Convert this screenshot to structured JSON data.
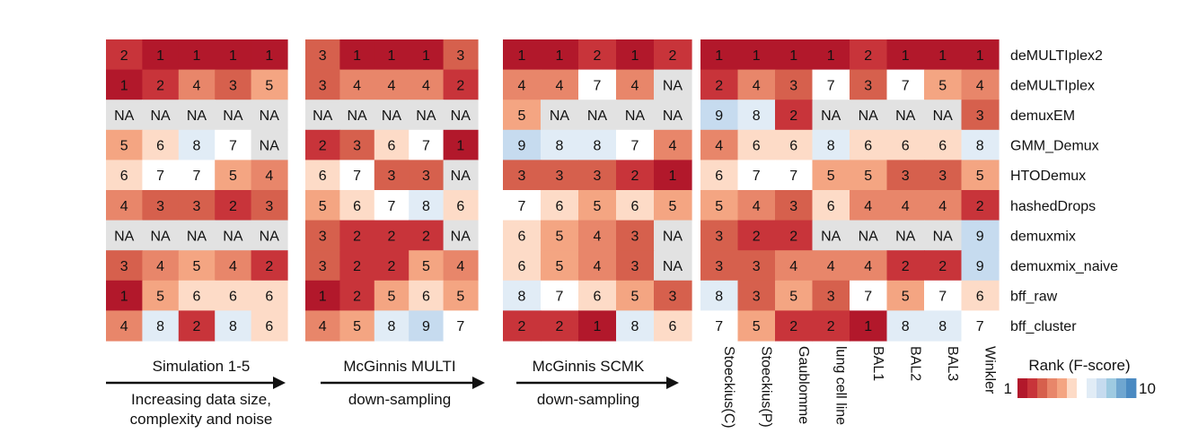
{
  "chart_data": {
    "type": "heatmap",
    "legend": {
      "title": "Rank (F-score)",
      "min_label": "1",
      "max_label": "10",
      "colors": [
        "#b2182b",
        "#c8343a",
        "#d6604d",
        "#e8866a",
        "#f4a582",
        "#fddbc7",
        "#ffffff",
        "#e1ecf6",
        "#c6dbef",
        "#9ecae1",
        "#6fa6d0",
        "#4a8ac2"
      ],
      "na_color": "#e2e2e2",
      "placement": "bottom-right"
    },
    "rows": [
      "deMULTIplex2",
      "deMULTIplex",
      "demuxEM",
      "GMM_Demux",
      "HTODemux",
      "hashedDrops",
      "demuxmix",
      "demuxmix_naive",
      "bff_raw",
      "bff_cluster"
    ],
    "blocks": [
      {
        "name": "simulation",
        "columns": [
          "1",
          "2",
          "3",
          "4",
          "5"
        ],
        "column_labels_shown": false,
        "caption": "Simulation 1-5",
        "arrow_caption": [
          "Increasing data size,",
          "complexity and noise"
        ],
        "values": [
          [
            "2",
            "1",
            "1",
            "1",
            "1"
          ],
          [
            "1",
            "2",
            "4",
            "3",
            "5"
          ],
          [
            "NA",
            "NA",
            "NA",
            "NA",
            "NA"
          ],
          [
            "5",
            "6",
            "8",
            "7",
            "NA"
          ],
          [
            "6",
            "7",
            "7",
            "5",
            "4"
          ],
          [
            "4",
            "3",
            "3",
            "2",
            "3"
          ],
          [
            "NA",
            "NA",
            "NA",
            "NA",
            "NA"
          ],
          [
            "3",
            "4",
            "5",
            "4",
            "2"
          ],
          [
            "1",
            "5",
            "6",
            "6",
            "6"
          ],
          [
            "4",
            "8",
            "2",
            "8",
            "6"
          ]
        ]
      },
      {
        "name": "mcginnis-multi",
        "columns": [
          "1",
          "2",
          "3",
          "4",
          "5"
        ],
        "column_labels_shown": false,
        "caption": "McGinnis MULTI",
        "arrow_caption": [
          "down-sampling"
        ],
        "values": [
          [
            "3",
            "1",
            "1",
            "1",
            "3"
          ],
          [
            "3",
            "4",
            "4",
            "4",
            "2"
          ],
          [
            "NA",
            "NA",
            "NA",
            "NA",
            "NA"
          ],
          [
            "2",
            "3",
            "6",
            "7",
            "1"
          ],
          [
            "6",
            "7",
            "3",
            "3",
            "NA"
          ],
          [
            "5",
            "6",
            "7",
            "8",
            "6"
          ],
          [
            "3",
            "2",
            "2",
            "2",
            "NA"
          ],
          [
            "3",
            "2",
            "2",
            "5",
            "4"
          ],
          [
            "1",
            "2",
            "5",
            "6",
            "5"
          ],
          [
            "4",
            "5",
            "8",
            "9",
            "7"
          ]
        ]
      },
      {
        "name": "mcginnis-scmk",
        "columns": [
          "1",
          "2",
          "3",
          "4",
          "5"
        ],
        "column_labels_shown": false,
        "caption": "McGinnis SCMK",
        "arrow_caption": [
          "down-sampling"
        ],
        "values": [
          [
            "1",
            "1",
            "2",
            "1",
            "2"
          ],
          [
            "4",
            "4",
            "7",
            "4",
            "NA"
          ],
          [
            "5",
            "NA",
            "NA",
            "NA",
            "NA"
          ],
          [
            "9",
            "8",
            "8",
            "7",
            "4"
          ],
          [
            "3",
            "3",
            "3",
            "2",
            "1"
          ],
          [
            "7",
            "6",
            "5",
            "6",
            "5"
          ],
          [
            "6",
            "5",
            "4",
            "3",
            "NA"
          ],
          [
            "6",
            "5",
            "4",
            "3",
            "NA"
          ],
          [
            "8",
            "7",
            "6",
            "5",
            "3"
          ],
          [
            "2",
            "2",
            "1",
            "8",
            "6"
          ]
        ]
      },
      {
        "name": "real-datasets",
        "columns": [
          "Stoeckius(C)",
          "Stoeckius(P)",
          "Gaublomme",
          "lung cell line",
          "BAL1",
          "BAL2",
          "BAL3",
          "Winkler"
        ],
        "column_labels_shown": true,
        "values": [
          [
            "1",
            "1",
            "1",
            "1",
            "2",
            "1",
            "1",
            "1"
          ],
          [
            "2",
            "4",
            "3",
            "7",
            "3",
            "7",
            "5",
            "4"
          ],
          [
            "9",
            "8",
            "2",
            "NA",
            "NA",
            "NA",
            "NA",
            "3"
          ],
          [
            "4",
            "6",
            "6",
            "8",
            "6",
            "6",
            "6",
            "8"
          ],
          [
            "6",
            "7",
            "7",
            "5",
            "5",
            "3",
            "3",
            "5"
          ],
          [
            "5",
            "4",
            "3",
            "6",
            "4",
            "4",
            "4",
            "2"
          ],
          [
            "3",
            "2",
            "2",
            "NA",
            "NA",
            "NA",
            "NA",
            "9"
          ],
          [
            "3",
            "3",
            "4",
            "4",
            "4",
            "2",
            "2",
            "9"
          ],
          [
            "8",
            "3",
            "5",
            "3",
            "7",
            "5",
            "7",
            "6"
          ],
          [
            "7",
            "5",
            "2",
            "2",
            "1",
            "8",
            "8",
            "7"
          ]
        ]
      }
    ]
  }
}
